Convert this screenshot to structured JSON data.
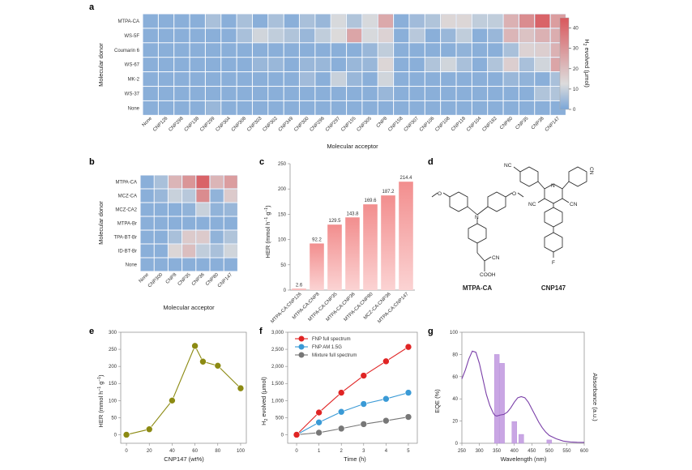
{
  "panels": {
    "a": "a",
    "b": "b",
    "c": "c",
    "d": "d",
    "e": "e",
    "f": "f",
    "g": "g"
  },
  "chart_data": [
    {
      "id": "a",
      "type": "heatmap",
      "xlabel": "Molecular acceptor",
      "ylabel": "Molecular donor",
      "rows": [
        "MTPA-CA",
        "WS-5F",
        "Coumarin 6",
        "WS-67",
        "MK-2",
        "WS-37",
        "None"
      ],
      "columns": [
        "None",
        "CNP126",
        "CNP298",
        "CNP138",
        "CNP299",
        "CNP304",
        "CNP308",
        "CNP303",
        "CNP302",
        "CNP349",
        "CNP300",
        "CNP296",
        "CNP297",
        "CNP155",
        "CNP305",
        "CNP8",
        "CNP158",
        "CNP307",
        "CNP106",
        "CNP108",
        "CNP118",
        "CNP104",
        "CNP182",
        "CNP80",
        "CNP35",
        "CNP36",
        "CNP147"
      ],
      "values": [
        [
          2,
          2,
          2,
          2,
          6,
          2,
          6,
          2,
          6,
          2,
          6,
          4,
          12,
          7,
          12,
          25,
          2,
          5,
          7,
          14,
          14,
          9,
          9,
          23,
          32,
          42,
          28
        ],
        [
          2,
          2,
          2,
          2,
          2,
          2,
          6,
          11,
          9,
          7,
          4,
          9,
          13,
          26,
          12,
          15,
          2,
          8,
          2,
          4,
          9,
          2,
          4,
          22,
          19,
          23,
          24
        ],
        [
          2,
          2,
          2,
          2,
          2,
          2,
          2,
          2,
          2,
          2,
          2,
          2,
          2,
          2,
          4,
          9,
          2,
          2,
          2,
          2,
          3,
          2,
          2,
          6,
          15,
          16,
          23
        ],
        [
          2,
          2,
          2,
          2,
          2,
          2,
          2,
          4,
          4,
          2,
          4,
          4,
          2,
          4,
          4,
          14,
          2,
          2,
          7,
          11,
          6,
          2,
          7,
          16,
          6,
          11,
          26
        ],
        [
          2,
          2,
          2,
          2,
          2,
          2,
          2,
          2,
          2,
          2,
          5,
          2,
          10,
          4,
          2,
          11,
          2,
          2,
          2,
          2,
          2,
          2,
          2,
          4,
          3,
          2,
          6
        ],
        [
          2,
          2,
          2,
          2,
          2,
          2,
          2,
          2,
          2,
          2,
          2,
          2,
          2,
          2,
          2,
          4,
          2,
          2,
          2,
          2,
          2,
          2,
          2,
          2,
          2,
          7,
          7
        ],
        [
          2,
          2,
          2,
          2,
          4,
          2,
          2,
          2,
          2,
          2,
          2,
          2,
          2,
          2,
          2,
          2,
          2,
          2,
          2,
          2,
          2,
          2,
          2,
          2,
          2,
          2,
          2
        ]
      ],
      "colorbar": {
        "label": "H2 evolved (μmol)",
        "label_main": "H",
        "label_sub": "2",
        "label_rest": " evolved (μmol)",
        "range": [
          0,
          45
        ],
        "ticks": [
          0,
          10,
          20,
          30,
          40
        ],
        "colors": {
          "low": "#7aa6d8",
          "mid": "#dcdcdc",
          "high": "#d9575c"
        }
      }
    },
    {
      "id": "b",
      "type": "heatmap",
      "xlabel": "Molecular acceptor",
      "ylabel": "Molecular donor",
      "rows": [
        "MTPA-CA",
        "MCZ-CA",
        "MCZ-CA2",
        "MTPA-Br",
        "TPA-BT-Br",
        "ID-BT-Br",
        "None"
      ],
      "columns": [
        "None",
        "CNP300",
        "CNP8",
        "CNP35",
        "CNP36",
        "CNP80",
        "CNP147"
      ],
      "values": [
        [
          2,
          6,
          22,
          30,
          42,
          22,
          28
        ],
        [
          2,
          4,
          10,
          8,
          32,
          3,
          17
        ],
        [
          2,
          2,
          2,
          3,
          10,
          3,
          4
        ],
        [
          2,
          2,
          2,
          2,
          2,
          2,
          2
        ],
        [
          2,
          2,
          6,
          17,
          17,
          3,
          7
        ],
        [
          2,
          2,
          14,
          20,
          9,
          6,
          11
        ],
        [
          2,
          2,
          2,
          2,
          2,
          2,
          2
        ]
      ],
      "range": [
        0,
        45
      ]
    },
    {
      "id": "c",
      "type": "bar",
      "categories": [
        "MTPA-CA:CNP126",
        "MTPA-CA:CNP8",
        "MTPA-CA:CNP35",
        "MTPA-CA:CNP36",
        "MTPA-CA:CNP80",
        "MCZ-CA:CNP36",
        "MTPA-CA:CNP147"
      ],
      "values": [
        2.6,
        92.2,
        129.5,
        143.8,
        169.6,
        187.2,
        214.4
      ],
      "data_labels": [
        "2.6",
        "92.2",
        "129.5",
        "143.8",
        "169.6",
        "187.2",
        "214.4"
      ],
      "ylabel_main": "HER (mmol h",
      "ylabel_sup1": "−1",
      "ylabel_mid": " g",
      "ylabel_sup2": "−1",
      "ylabel_end": ")",
      "ylim": [
        0,
        250
      ],
      "yticks": [
        0,
        50,
        100,
        150,
        200,
        250
      ],
      "color": "#f28e8e"
    },
    {
      "id": "e",
      "type": "line",
      "x": [
        0,
        20,
        40,
        60,
        67,
        80,
        100
      ],
      "values": [
        0,
        16,
        100,
        260,
        214,
        202,
        136
      ],
      "xlabel": "CNP147 (wt%)",
      "ylabel_main": "HER (mmol h",
      "ylabel_sup1": "−1",
      "ylabel_mid": " g",
      "ylabel_sup2": "−1",
      "ylabel_end": ")",
      "xlim": [
        -5,
        105
      ],
      "ylim": [
        -25,
        300
      ],
      "xticks": [
        0,
        20,
        40,
        60,
        80,
        100
      ],
      "yticks": [
        0,
        50,
        100,
        150,
        200,
        250,
        300
      ],
      "color": "#8c8a12"
    },
    {
      "id": "f",
      "type": "line",
      "x": [
        0,
        1,
        2,
        3,
        4,
        5
      ],
      "series": [
        {
          "name": "FNP full spectrum",
          "values": [
            0,
            650,
            1230,
            1730,
            2150,
            2570
          ],
          "color": "#e02424"
        },
        {
          "name": "FNP AM 1.5G",
          "values": [
            0,
            360,
            670,
            900,
            1050,
            1230
          ],
          "color": "#3a9ad6"
        },
        {
          "name": "Mixture full spectrum",
          "values": [
            0,
            60,
            180,
            310,
            410,
            520
          ],
          "color": "#777777"
        }
      ],
      "xlabel": "Time (h)",
      "ylabel_main": "H",
      "ylabel_sub": "2",
      "ylabel_rest": " evolved (μmol)",
      "xlim": [
        -0.4,
        5.4
      ],
      "ylim": [
        -250,
        3000
      ],
      "xticks": [
        0,
        1,
        2,
        3,
        4,
        5
      ],
      "yticks": [
        0,
        500,
        1000,
        1500,
        2000,
        2500,
        3000
      ],
      "ytick_labels": [
        "0",
        "500",
        "1,000",
        "1,500",
        "2,000",
        "2,500",
        "3,000"
      ],
      "legend": "top-left"
    },
    {
      "id": "g",
      "type": "bar",
      "bars": [
        {
          "x": 350,
          "value": 80
        },
        {
          "x": 365,
          "value": 72
        },
        {
          "x": 400,
          "value": 19.5
        },
        {
          "x": 420,
          "value": 8
        },
        {
          "x": 500,
          "value": 3
        }
      ],
      "absorbance_curve": {
        "x": [
          250,
          260,
          270,
          280,
          290,
          300,
          310,
          320,
          330,
          340,
          345,
          350,
          360,
          370,
          380,
          390,
          400,
          410,
          420,
          430,
          440,
          450,
          460,
          470,
          480,
          490,
          500,
          520,
          540,
          560,
          580,
          600
        ],
        "y": [
          58,
          66,
          76,
          83,
          82,
          72,
          58,
          44,
          34,
          27,
          25,
          24.5,
          25.5,
          26,
          28,
          32,
          37,
          41,
          42,
          41,
          37,
          31,
          25,
          19,
          14,
          10,
          7,
          4,
          2,
          1.2,
          0.9,
          0.8
        ]
      },
      "xlabel": "Wavelength (nm)",
      "ylabel": "EQE (%)",
      "ylabel_right": "Absorbance (a.u.)",
      "xlim": [
        250,
        600
      ],
      "ylim": [
        0,
        100
      ],
      "xticks": [
        250,
        300,
        350,
        400,
        450,
        500,
        550,
        600
      ],
      "yticks": [
        0,
        20,
        40,
        60,
        80,
        100
      ],
      "bar_color": "#c9a6e4",
      "line_color": "#7a3fa8"
    }
  ],
  "structures": {
    "mtpa_ca": {
      "name": "MTPA-CA",
      "atoms": {
        "o1": "O",
        "o2": "O",
        "n": "N",
        "cn": "CN",
        "cooh": "COOH"
      }
    },
    "cnp147": {
      "name": "CNP147",
      "atoms": {
        "nc_top": "NC",
        "n_ring": "N",
        "cn_right_top": "CN",
        "nc_left": "NC",
        "cn_right": "CN",
        "f": "F"
      }
    }
  }
}
